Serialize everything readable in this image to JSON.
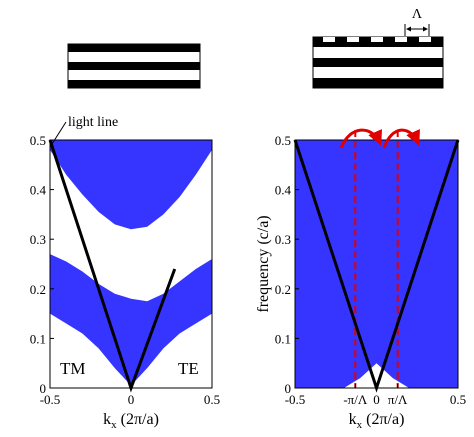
{
  "chart_data": [
    {
      "type": "band",
      "light_line_label": "light line",
      "left_label": "TM",
      "right_label": "TE",
      "xlabel": [
        "k",
        "x",
        " (2π/a)"
      ],
      "xlim": [
        -0.5,
        0.5
      ],
      "ylim": [
        0,
        0.5
      ],
      "xticks": [
        -0.5,
        0,
        0.5
      ],
      "yticks": [
        0,
        0.1,
        0.2,
        0.3,
        0.4,
        0.5
      ],
      "color": "#1f1fff",
      "line_color": "#000000",
      "bands": [
        {
          "x": [
            -0.5,
            -0.4,
            -0.3,
            -0.2,
            -0.1,
            0,
            0.1,
            0.2,
            0.3,
            0.4,
            0.5
          ],
          "low": [
            0.15,
            0.13,
            0.11,
            0.08,
            0.04,
            0.005,
            0.04,
            0.08,
            0.11,
            0.13,
            0.15
          ],
          "high": [
            0.27,
            0.255,
            0.235,
            0.21,
            0.19,
            0.18,
            0.175,
            0.19,
            0.215,
            0.24,
            0.26
          ]
        },
        {
          "x": [
            -0.5,
            -0.4,
            -0.3,
            -0.2,
            -0.1,
            0,
            0.1,
            0.2,
            0.3,
            0.4,
            0.5
          ],
          "low": [
            0.48,
            0.43,
            0.39,
            0.355,
            0.33,
            0.32,
            0.325,
            0.35,
            0.385,
            0.43,
            0.48
          ],
          "high": [
            0.5,
            0.5,
            0.5,
            0.5,
            0.5,
            0.5,
            0.5,
            0.5,
            0.5,
            0.5,
            0.5
          ]
        }
      ],
      "light_line": {
        "x": [
          -0.5,
          0,
          0.27
        ],
        "y": [
          0.5,
          0,
          0.24
        ]
      }
    },
    {
      "type": "band",
      "period_label": "Λ",
      "xlabel": [
        "k",
        "x",
        " (2π/a)"
      ],
      "ylabel": "frequency (c/a)",
      "xlim": [
        -0.5,
        0.5
      ],
      "ylim": [
        0,
        0.5
      ],
      "xticks": [
        -0.5,
        {
          "value": -0.13,
          "label": "-π/Λ"
        },
        0,
        {
          "value": 0.13,
          "label": "π/Λ"
        },
        0.5
      ],
      "yticks": [
        0,
        0.1,
        0.2,
        0.3,
        0.4,
        0.5
      ],
      "color": "#1f1fff",
      "line_color": "#000000",
      "marker_color": "#e00000",
      "bands": [
        {
          "x": [
            -0.5,
            -0.4,
            -0.3,
            -0.2,
            -0.1,
            0,
            0.1,
            0.2,
            0.3,
            0.4,
            0.5
          ],
          "low": [
            0.0,
            0.0,
            0.0,
            0.0,
            0.02,
            0.05,
            0.02,
            0.0,
            0.0,
            0.0,
            0.0
          ],
          "high": [
            0.5,
            0.5,
            0.5,
            0.5,
            0.5,
            0.5,
            0.5,
            0.5,
            0.5,
            0.5,
            0.5
          ]
        }
      ],
      "light_line": {
        "x": [
          -0.5,
          0,
          0.5
        ],
        "y": [
          0.5,
          0,
          0.5
        ]
      }
    }
  ]
}
